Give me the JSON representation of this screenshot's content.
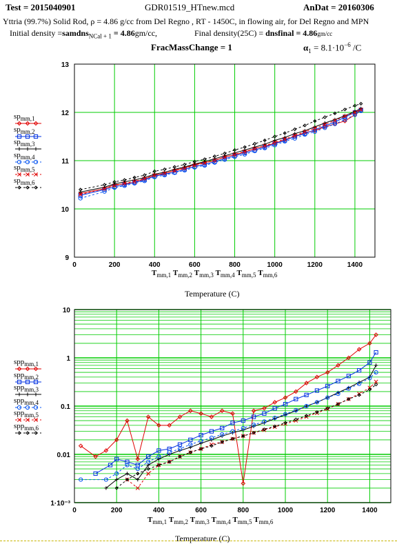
{
  "header": {
    "test": "Test = 2015040901",
    "file": "GDR01519_HTnew.mcd",
    "andat": "AnDat = 20160306",
    "line2": "Yttria (99.7%) Solid Rod,  ρ = 4.86 g/cc from Del Regno , RT - 1450C, in flowing air, for Del Regno and MPN",
    "initial_label": "Initial density =",
    "initial_var": "samdns",
    "initial_sub": "NCal + 1",
    "initial_value": " = 4.86",
    "initial_unit": "gm/cc,",
    "final_label": "Final density(25C) = ",
    "final_var": "dnsfinal",
    "final_value": " = 4.86",
    "final_unit": "gm/cc",
    "frac": "FracMassChange = 1",
    "alpha_sym": "α",
    "alpha_sub": "1",
    "alpha_val": " = 8.1·10",
    "alpha_exp": "−6",
    "alpha_unit": " /C"
  },
  "colors": {
    "grid": "#00cc00",
    "s1": "#e00000",
    "s2": "#0030e0",
    "s3": "#000000",
    "s4": "#0050f0",
    "s5": "#e00000",
    "s6": "#000000"
  },
  "chart_data": [
    {
      "type": "line",
      "xlim": [
        0,
        1500
      ],
      "ylim": [
        9,
        13
      ],
      "xticks": [
        "0",
        "200",
        "400",
        "600",
        "800",
        "1000",
        "1200",
        "1400"
      ],
      "yticks": [
        "9",
        "10",
        "11",
        "12",
        "13"
      ],
      "xlabel_tmm": "T",
      "xlabel_sub": "mm",
      "xlabel_indices": [
        ",1",
        ",2",
        ",3",
        ",4",
        ",5",
        ",6"
      ],
      "xtitle": "Temperature (C)",
      "grid": true,
      "legend_position": "left",
      "series": [
        {
          "name": "sp_mm,1",
          "label_main": "sp",
          "label_sub": "mm,1",
          "marker": "diamond",
          "x": [
            30,
            150,
            200,
            250,
            300,
            350,
            400,
            450,
            500,
            550,
            600,
            650,
            700,
            750,
            800,
            850,
            900,
            950,
            1000,
            1050,
            1100,
            1150,
            1200,
            1250,
            1300,
            1350,
            1400,
            1430
          ],
          "y": [
            10.32,
            10.42,
            10.5,
            10.52,
            10.55,
            10.62,
            10.7,
            10.73,
            10.8,
            10.85,
            10.92,
            10.96,
            11.0,
            11.08,
            11.12,
            11.18,
            11.25,
            11.3,
            11.36,
            11.43,
            11.5,
            11.58,
            11.62,
            11.7,
            11.76,
            11.82,
            11.95,
            12.06
          ]
        },
        {
          "name": "sp_mm,2",
          "label_main": "sp",
          "label_sub": "mm,2",
          "marker": "square",
          "x": [
            30,
            150,
            200,
            250,
            300,
            350,
            400,
            450,
            500,
            550,
            600,
            650,
            700,
            750,
            800,
            850,
            900,
            950,
            1000,
            1050,
            1100,
            1150,
            1200,
            1250,
            1300,
            1350,
            1400,
            1430
          ],
          "y": [
            10.28,
            10.4,
            10.46,
            10.5,
            10.55,
            10.6,
            10.68,
            10.72,
            10.76,
            10.82,
            10.88,
            10.92,
            10.98,
            11.04,
            11.1,
            11.16,
            11.22,
            11.28,
            11.35,
            11.42,
            11.5,
            11.56,
            11.64,
            11.72,
            11.8,
            11.9,
            12.0,
            12.05
          ]
        },
        {
          "name": "sp_mm,3",
          "label_main": "sp",
          "label_sub": "mm,3",
          "marker": "plus",
          "x": [
            30,
            150,
            200,
            250,
            300,
            350,
            400,
            450,
            500,
            550,
            600,
            650,
            700,
            750,
            800,
            850,
            900,
            950,
            1000,
            1050,
            1100,
            1150,
            1200,
            1250,
            1300,
            1350,
            1400,
            1430
          ],
          "y": [
            10.35,
            10.45,
            10.52,
            10.56,
            10.6,
            10.65,
            10.72,
            10.76,
            10.82,
            10.87,
            10.93,
            10.98,
            11.04,
            11.1,
            11.16,
            11.22,
            11.28,
            11.34,
            11.42,
            11.48,
            11.56,
            11.62,
            11.7,
            11.78,
            11.85,
            11.93,
            12.02,
            12.08
          ]
        },
        {
          "name": "sp_mm,4",
          "label_main": "sp",
          "label_sub": "mm,4",
          "marker": "circle",
          "x": [
            30,
            150,
            200,
            250,
            300,
            350,
            400,
            450,
            500,
            550,
            600,
            650,
            700,
            750,
            800,
            850,
            900,
            950,
            1000,
            1050,
            1100,
            1150,
            1200,
            1250,
            1300,
            1350,
            1400,
            1430
          ],
          "y": [
            10.22,
            10.36,
            10.44,
            10.48,
            10.53,
            10.58,
            10.66,
            10.7,
            10.75,
            10.8,
            10.86,
            10.9,
            10.96,
            11.02,
            11.08,
            11.13,
            11.2,
            11.26,
            11.32,
            11.4,
            11.46,
            11.54,
            11.6,
            11.68,
            11.76,
            11.85,
            11.95,
            12.03
          ]
        },
        {
          "name": "sp_mm,5",
          "label_main": "sp",
          "label_sub": "mm,5",
          "marker": "cross",
          "x": [
            30,
            150,
            200,
            250,
            300,
            350,
            400,
            450,
            500,
            550,
            600,
            650,
            700,
            750,
            800,
            850,
            900,
            950,
            1000,
            1050,
            1100,
            1150,
            1200,
            1250,
            1300,
            1350,
            1400,
            1430
          ],
          "y": [
            10.3,
            10.42,
            10.48,
            10.53,
            10.57,
            10.63,
            10.7,
            10.74,
            10.79,
            10.84,
            10.9,
            10.95,
            11.01,
            11.07,
            11.13,
            11.19,
            11.25,
            11.31,
            11.38,
            11.45,
            11.52,
            11.6,
            11.67,
            11.75,
            11.83,
            11.92,
            12.0,
            12.06
          ]
        },
        {
          "name": "sp_mm,6",
          "label_main": "sp",
          "label_sub": "mm,6",
          "marker": "diamond-small",
          "x": [
            30,
            150,
            200,
            250,
            300,
            350,
            400,
            450,
            500,
            550,
            600,
            650,
            700,
            750,
            800,
            850,
            900,
            950,
            1000,
            1050,
            1100,
            1150,
            1200,
            1250,
            1300,
            1350,
            1400,
            1430
          ],
          "y": [
            10.4,
            10.5,
            10.56,
            10.6,
            10.65,
            10.7,
            10.78,
            10.82,
            10.87,
            10.92,
            10.98,
            11.03,
            11.09,
            11.15,
            11.22,
            11.28,
            11.35,
            11.42,
            11.5,
            11.57,
            11.65,
            11.73,
            11.82,
            11.9,
            11.98,
            12.06,
            12.14,
            12.18
          ]
        }
      ]
    },
    {
      "type": "line",
      "scale": "log",
      "xlim": [
        0,
        1500
      ],
      "ylim": [
        0.001,
        10
      ],
      "xticks": [
        "0",
        "200",
        "400",
        "600",
        "800",
        "1000",
        "1200",
        "1400"
      ],
      "yticks": [
        "10",
        "1",
        "0.1",
        "0.01",
        "1·10⁻³"
      ],
      "ytick_values": [
        10,
        1,
        0.1,
        0.01,
        0.001
      ],
      "xlabel_tmm": "T",
      "xlabel_sub": "mm",
      "xlabel_indices": [
        ",1",
        ",2",
        ",3",
        ",4",
        ",5",
        ",6"
      ],
      "xtitle": "Temperature (C)",
      "grid": true,
      "legend_position": "left",
      "series": [
        {
          "name": "spp_mm,1",
          "label_main": "spp",
          "label_sub": "mm,1",
          "marker": "diamond",
          "x": [
            30,
            100,
            150,
            200,
            250,
            300,
            350,
            400,
            450,
            500,
            550,
            600,
            650,
            700,
            750,
            800,
            850,
            900,
            950,
            1000,
            1050,
            1100,
            1150,
            1200,
            1250,
            1300,
            1350,
            1400,
            1430
          ],
          "y": [
            0.015,
            0.009,
            0.012,
            0.02,
            0.05,
            0.008,
            0.06,
            0.04,
            0.04,
            0.06,
            0.08,
            0.07,
            0.06,
            0.08,
            0.07,
            0.0025,
            0.08,
            0.09,
            0.12,
            0.15,
            0.2,
            0.3,
            0.4,
            0.5,
            0.7,
            1.0,
            1.5,
            2.0,
            3.0
          ]
        },
        {
          "name": "spp_mm,2",
          "label_main": "spp",
          "label_sub": "mm,2",
          "marker": "square",
          "x": [
            100,
            170,
            200,
            250,
            300,
            350,
            400,
            450,
            500,
            550,
            600,
            650,
            700,
            750,
            800,
            850,
            900,
            950,
            1000,
            1050,
            1100,
            1150,
            1200,
            1250,
            1300,
            1350,
            1400,
            1430
          ],
          "y": [
            0.004,
            0.006,
            0.008,
            0.007,
            0.006,
            0.009,
            0.012,
            0.013,
            0.016,
            0.02,
            0.025,
            0.03,
            0.035,
            0.045,
            0.05,
            0.06,
            0.07,
            0.09,
            0.11,
            0.14,
            0.17,
            0.21,
            0.26,
            0.33,
            0.42,
            0.55,
            0.8,
            1.3
          ]
        },
        {
          "name": "spp_mm,3",
          "label_main": "spp",
          "label_sub": "mm,3",
          "marker": "plus",
          "x": [
            150,
            200,
            250,
            300,
            350,
            400,
            450,
            500,
            550,
            600,
            650,
            700,
            750,
            800,
            850,
            900,
            950,
            1000,
            1050,
            1100,
            1150,
            1200,
            1250,
            1300,
            1350,
            1400,
            1430
          ],
          "y": [
            0.002,
            0.003,
            0.004,
            0.003,
            0.006,
            0.008,
            0.01,
            0.012,
            0.014,
            0.017,
            0.02,
            0.024,
            0.028,
            0.032,
            0.038,
            0.045,
            0.055,
            0.066,
            0.08,
            0.1,
            0.12,
            0.15,
            0.19,
            0.24,
            0.31,
            0.4,
            0.7
          ]
        },
        {
          "name": "spp_mm,4",
          "label_main": "spp",
          "label_sub": "mm,4",
          "marker": "circle",
          "x": [
            30,
            150,
            200,
            250,
            300,
            350,
            400,
            450,
            500,
            550,
            600,
            650,
            700,
            750,
            800,
            850,
            900,
            950,
            1000,
            1050,
            1100,
            1150,
            1200,
            1250,
            1300,
            1350,
            1400,
            1430
          ],
          "y": [
            0.003,
            0.003,
            0.004,
            0.006,
            0.005,
            0.007,
            0.009,
            0.011,
            0.013,
            0.016,
            0.019,
            0.022,
            0.026,
            0.03,
            0.035,
            0.041,
            0.048,
            0.057,
            0.068,
            0.082,
            0.1,
            0.12,
            0.15,
            0.18,
            0.23,
            0.29,
            0.38,
            0.5
          ]
        },
        {
          "name": "spp_mm,5",
          "label_main": "spp",
          "label_sub": "mm,5",
          "marker": "cross",
          "x": [
            250,
            300,
            350,
            400,
            450,
            500,
            550,
            600,
            650,
            700,
            750,
            800,
            850,
            900,
            950,
            1000,
            1050,
            1100,
            1150,
            1200,
            1250,
            1300,
            1350,
            1400,
            1430
          ],
          "y": [
            0.003,
            0.002,
            0.004,
            0.006,
            0.007,
            0.009,
            0.011,
            0.013,
            0.016,
            0.018,
            0.021,
            0.024,
            0.028,
            0.032,
            0.037,
            0.043,
            0.05,
            0.06,
            0.072,
            0.088,
            0.11,
            0.14,
            0.18,
            0.24,
            0.32
          ]
        },
        {
          "name": "spp_mm,6",
          "label_main": "spp",
          "label_sub": "mm,6",
          "marker": "diamond-small",
          "x": [
            200,
            250,
            300,
            350,
            400,
            450,
            500,
            550,
            600,
            650,
            700,
            750,
            800,
            850,
            900,
            950,
            1000,
            1050,
            1100,
            1150,
            1200,
            1250,
            1300,
            1350,
            1400,
            1430
          ],
          "y": [
            0.002,
            0.003,
            0.004,
            0.005,
            0.006,
            0.007,
            0.009,
            0.011,
            0.013,
            0.015,
            0.018,
            0.021,
            0.024,
            0.028,
            0.033,
            0.038,
            0.045,
            0.053,
            0.063,
            0.075,
            0.09,
            0.11,
            0.14,
            0.17,
            0.22,
            0.28
          ]
        }
      ]
    }
  ]
}
